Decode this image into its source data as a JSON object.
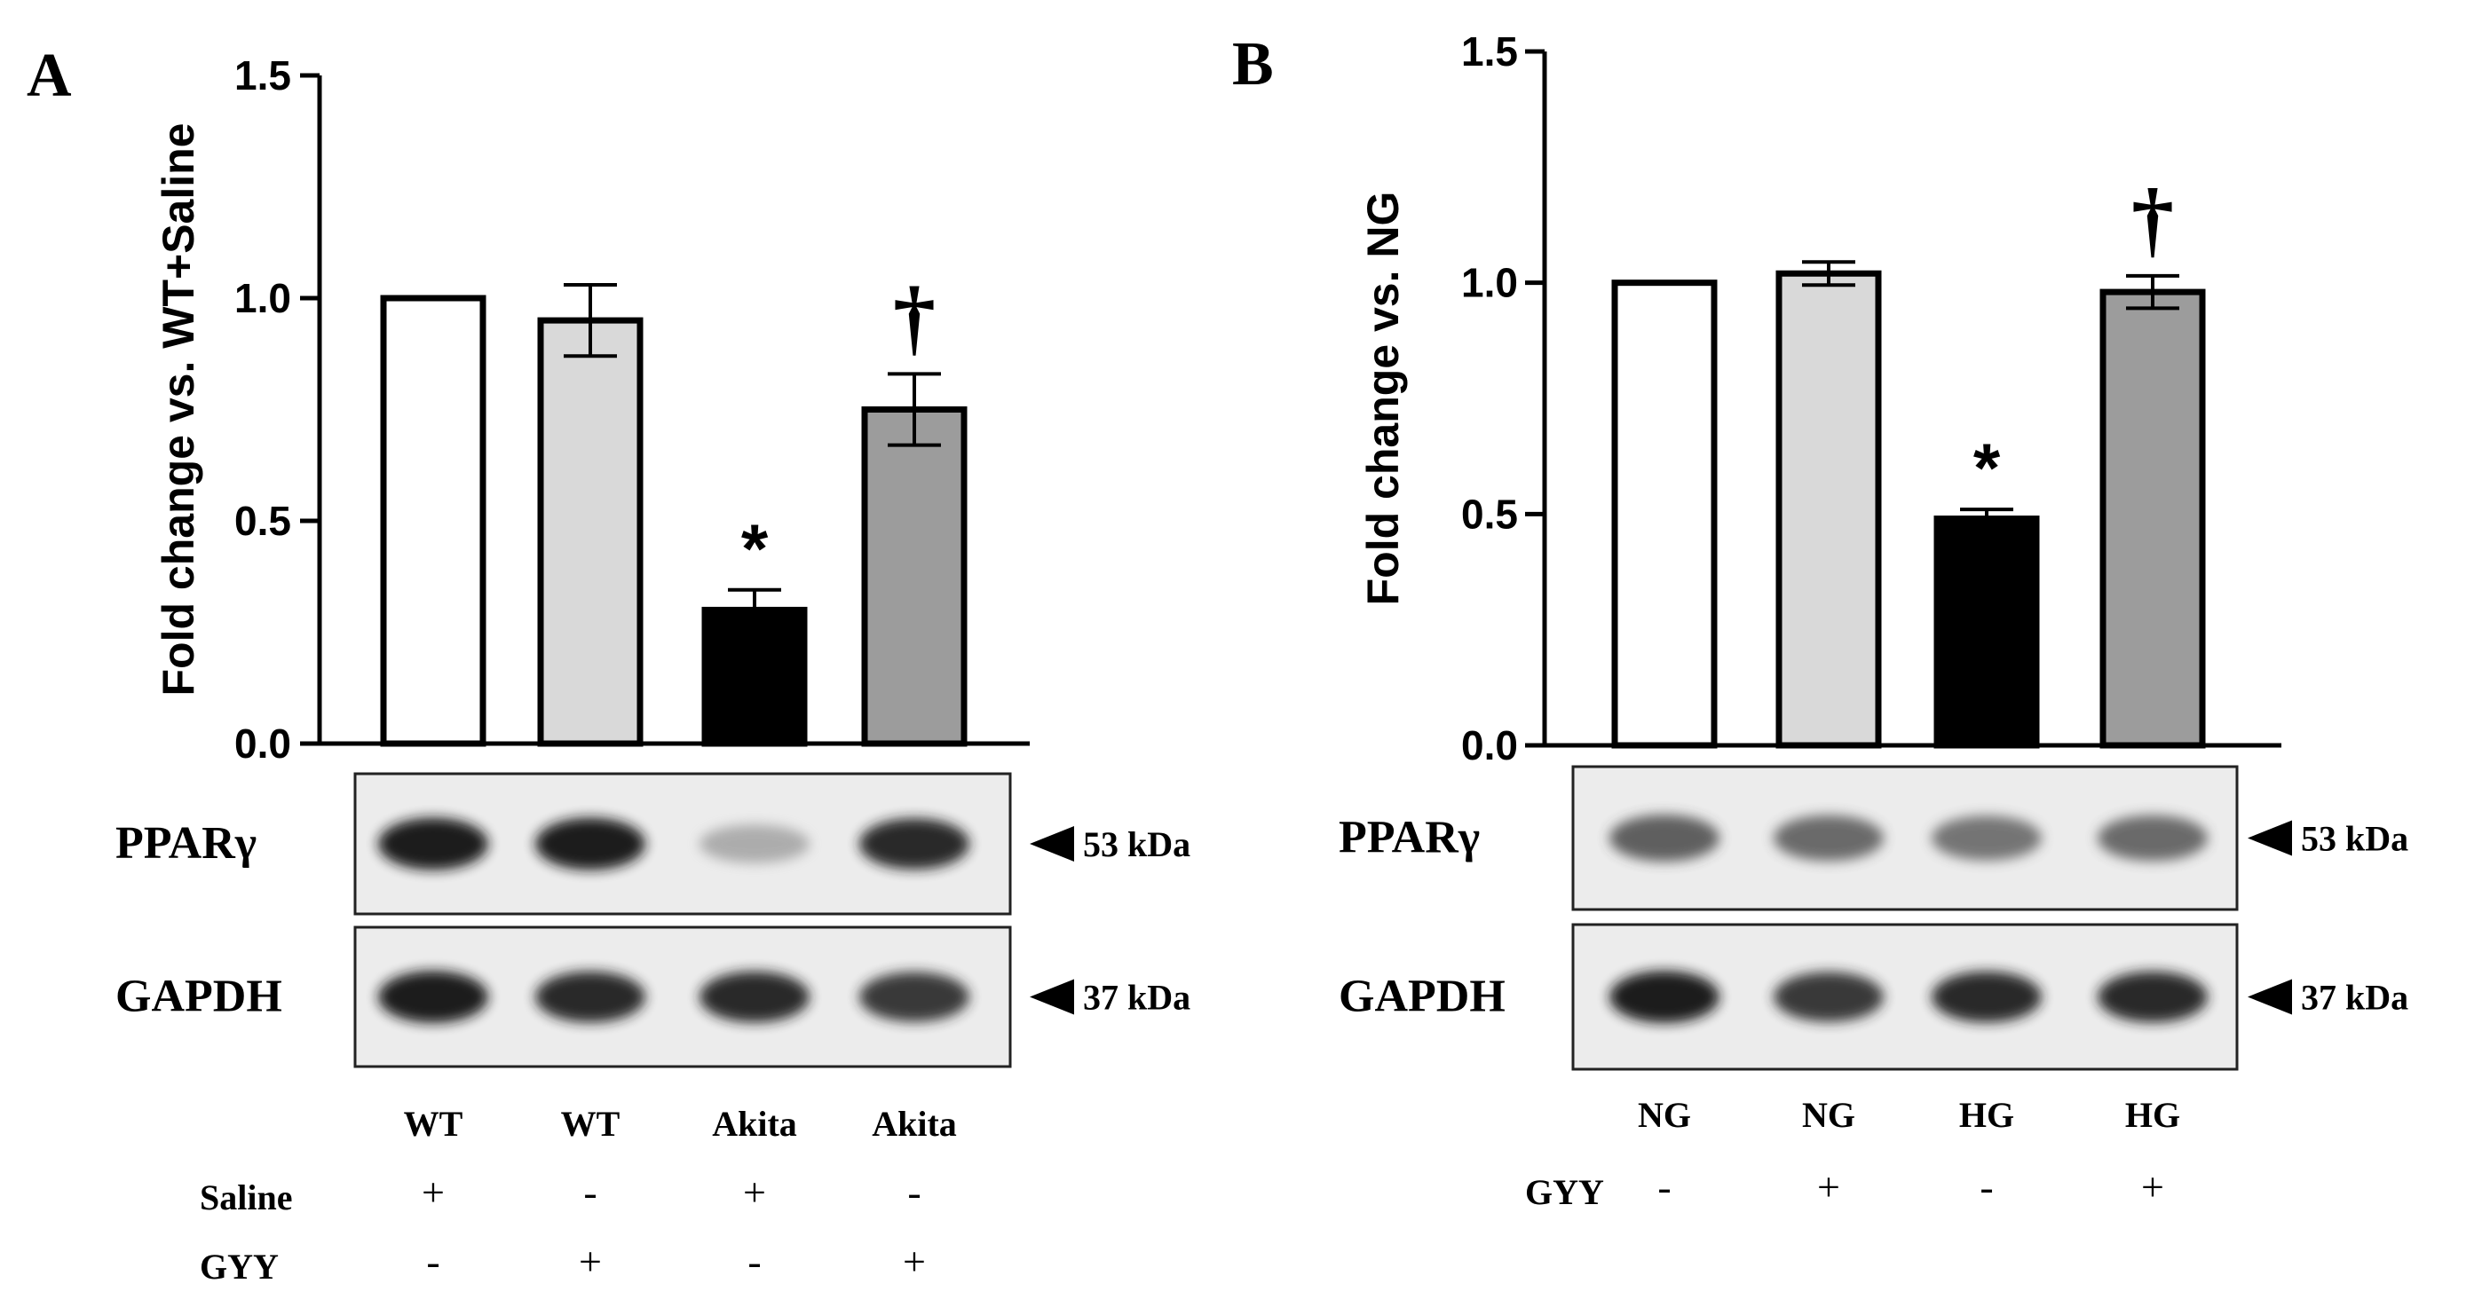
{
  "chart_data": [
    {
      "panel_label": "A",
      "type": "bar",
      "ylabel": "Fold change vs. WT+Saline",
      "ylim": [
        0,
        1.5
      ],
      "yticks": [
        "0.0",
        "0.5",
        "1.0",
        "1.5"
      ],
      "categories": [
        "WT",
        "WT",
        "Akita",
        "Akita"
      ],
      "values": [
        1.0,
        0.95,
        0.3,
        0.75
      ],
      "errors": [
        0.0,
        0.08,
        0.045,
        0.08
      ],
      "bar_fills": [
        "#ffffff",
        "#d9d9d9",
        "#000000",
        "#9c9c9c"
      ],
      "annotations": [
        "",
        "",
        "*",
        "†"
      ],
      "blots": [
        {
          "label": "PPARγ",
          "size": "53 kDa",
          "intensity": [
            0.95,
            0.95,
            0.3,
            0.9
          ]
        },
        {
          "label": "GAPDH",
          "size": "37 kDa",
          "intensity": [
            0.95,
            0.9,
            0.9,
            0.85
          ]
        }
      ],
      "treatments": [
        {
          "name": "Saline",
          "signs": [
            "+",
            "-",
            "+",
            "-"
          ]
        },
        {
          "name": "GYY",
          "signs": [
            "-",
            "+",
            "-",
            "+"
          ]
        }
      ]
    },
    {
      "panel_label": "B",
      "type": "bar",
      "ylabel": "Fold change vs. NG",
      "ylim": [
        0,
        1.5
      ],
      "yticks": [
        "0.0",
        "0.5",
        "1.0",
        "1.5"
      ],
      "categories": [
        "NG",
        "NG",
        "HG",
        "HG"
      ],
      "values": [
        1.0,
        1.02,
        0.49,
        0.98
      ],
      "errors": [
        0.0,
        0.025,
        0.02,
        0.035
      ],
      "bar_fills": [
        "#ffffff",
        "#d9d9d9",
        "#000000",
        "#9c9c9c"
      ],
      "annotations": [
        "",
        "",
        "*",
        "†"
      ],
      "blots": [
        {
          "label": "PPARγ",
          "size": "53 kDa",
          "intensity": [
            0.7,
            0.65,
            0.6,
            0.65
          ]
        },
        {
          "label": "GAPDH",
          "size": "37 kDa",
          "intensity": [
            0.95,
            0.85,
            0.9,
            0.9
          ]
        }
      ],
      "treatments": [
        {
          "name": "GYY",
          "signs": [
            "-",
            "+",
            "-",
            "+"
          ]
        }
      ]
    }
  ]
}
